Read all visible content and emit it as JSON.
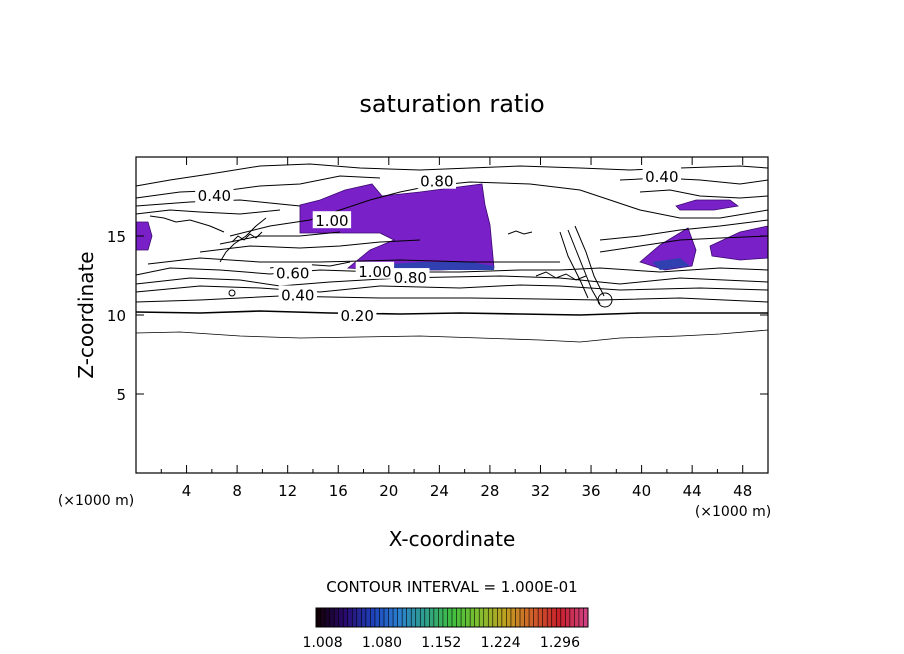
{
  "chart_data": {
    "type": "contour",
    "title": "saturation ratio",
    "xlabel": "X-coordinate",
    "ylabel": "Z-coordinate",
    "x_unit_label": "(×1000 m)",
    "z_unit_label": "(×1000 m)",
    "xlim": [
      0,
      50
    ],
    "ylim": [
      0,
      20
    ],
    "x_ticks": [
      4,
      8,
      12,
      16,
      20,
      24,
      28,
      32,
      36,
      40,
      44,
      48
    ],
    "y_ticks": [
      5,
      10,
      15
    ],
    "contour_interval_text": "CONTOUR INTERVAL = 1.000E-01",
    "contour_labels": [
      {
        "text": "0.20",
        "x": 17.5,
        "z": 10.0
      },
      {
        "text": "0.40",
        "x": 12.8,
        "z": 11.3
      },
      {
        "text": "0.60",
        "x": 12.4,
        "z": 12.7
      },
      {
        "text": "0.80",
        "x": 21.7,
        "z": 12.4
      },
      {
        "text": "1.00",
        "x": 18.9,
        "z": 12.8
      },
      {
        "text": "0.40",
        "x": 6.2,
        "z": 17.6
      },
      {
        "text": "0.80",
        "x": 23.8,
        "z": 18.5
      },
      {
        "text": "0.40",
        "x": 41.6,
        "z": 18.8
      },
      {
        "text": "1.00",
        "x": 15.5,
        "z": 16.0
      }
    ],
    "colorbar": {
      "ticks": [
        "1.008",
        "1.080",
        "1.152",
        "1.224",
        "1.296"
      ],
      "range": [
        1.0,
        1.33
      ],
      "colors": [
        "#120008",
        "#2a0a6e",
        "#1f3fb8",
        "#2a7fd0",
        "#2fa08c",
        "#3fbf3f",
        "#7fbf2f",
        "#bfa020",
        "#d0602a",
        "#c8202a",
        "#d04080"
      ]
    },
    "supersaturated_fill_color": "#7a20c8"
  }
}
